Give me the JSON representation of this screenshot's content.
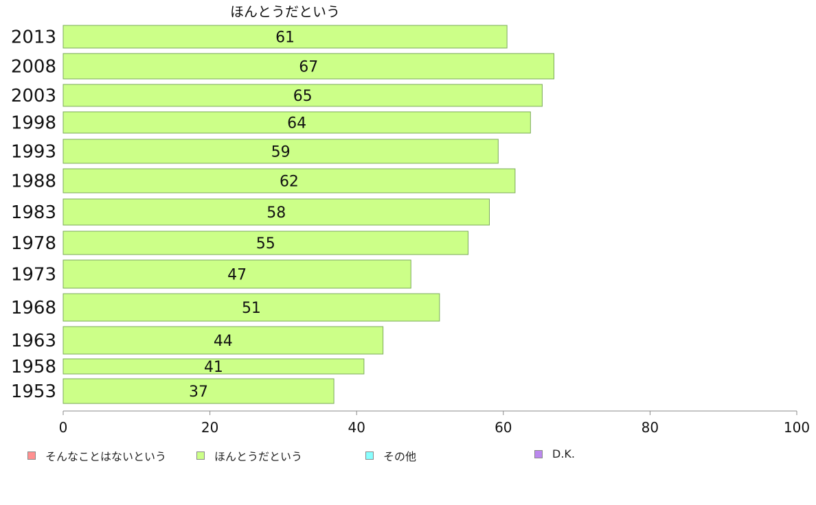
{
  "chart_data": {
    "type": "bar",
    "orientation": "horizontal",
    "title": "ほんとうだという",
    "categories": [
      "2013",
      "2008",
      "2003",
      "1998",
      "1993",
      "1988",
      "1983",
      "1978",
      "1973",
      "1968",
      "1963",
      "1958",
      "1953"
    ],
    "series": [
      {
        "name": "ほんとうだという",
        "color": "#ccff88",
        "values": [
          60.5,
          66.9,
          65.3,
          63.7,
          59.3,
          61.6,
          58.1,
          55.2,
          47.4,
          51.3,
          43.6,
          41.0,
          36.9
        ],
        "labels": [
          "61",
          "67",
          "65",
          "64",
          "59",
          "62",
          "58",
          "55",
          "47",
          "51",
          "44",
          "41",
          "37"
        ]
      }
    ],
    "xlim": [
      0,
      100
    ],
    "x_ticks": [
      "0",
      "20",
      "40",
      "60",
      "80",
      "100"
    ],
    "grid": false,
    "legend_position": "bottom",
    "legend": [
      {
        "label": "そんなことはないという",
        "color": "#ff9090"
      },
      {
        "label": "ほんとうだという",
        "color": "#ccff88"
      },
      {
        "label": "その他",
        "color": "#88ffff"
      },
      {
        "label": "D.K.",
        "color": "#bb88ee"
      }
    ]
  }
}
